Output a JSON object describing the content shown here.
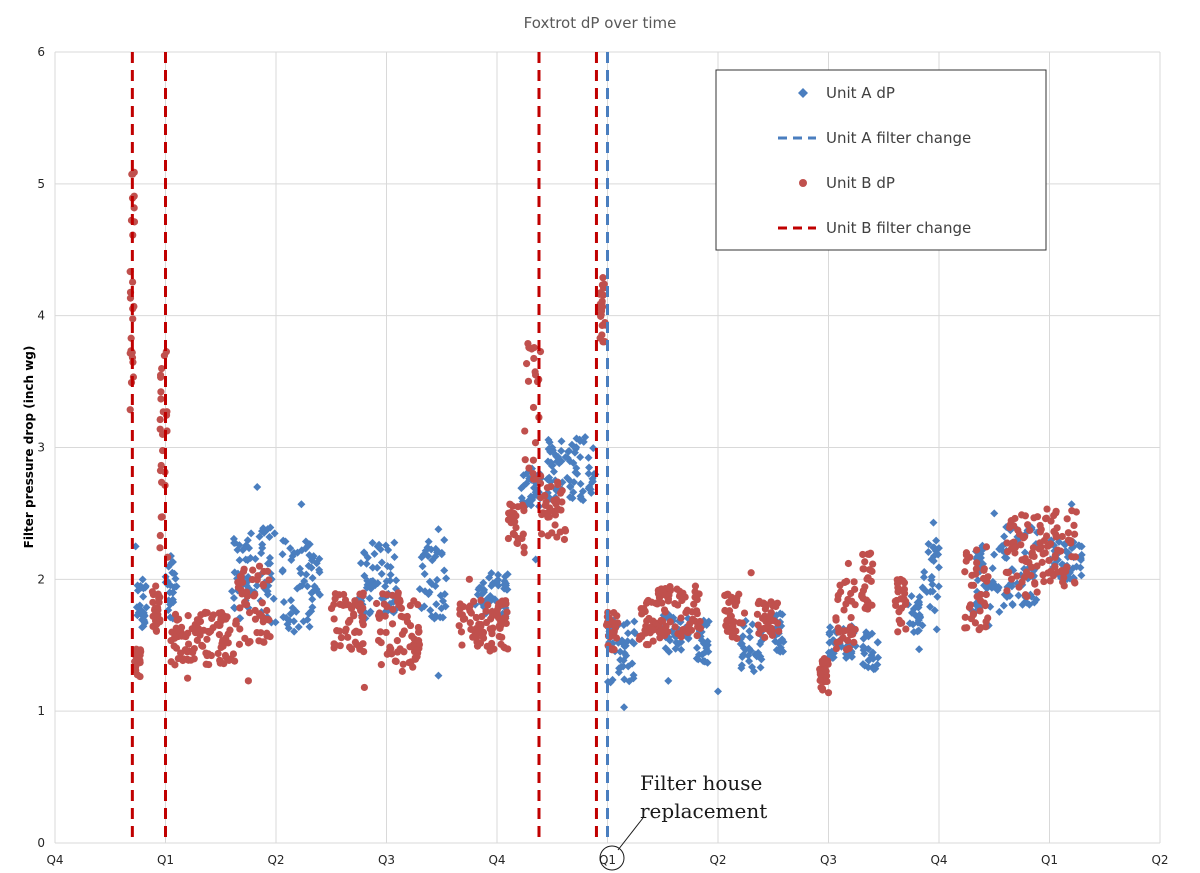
{
  "chart_data": {
    "type": "scatter",
    "title": "Foxtrot dP over time",
    "ylabel": "Filter pressure drop (inch wg)",
    "xlabel": "",
    "ylim": [
      0,
      6
    ],
    "yticks": [
      0,
      1,
      2,
      3,
      4,
      5,
      6
    ],
    "xticks": [
      "Q4",
      "Q1",
      "Q2",
      "Q3",
      "Q4",
      "Q1",
      "Q2",
      "Q3",
      "Q4",
      "Q1",
      "Q2"
    ],
    "grid": true,
    "legend_position": "top-right",
    "colors": {
      "unit_a": "#4a7ebf",
      "unit_b": "#c0504d",
      "unit_b_line": "#c00000",
      "grid": "#d9d9d9"
    },
    "series": [
      {
        "name": "Unit A dP",
        "marker": "diamond",
        "segments": [
          {
            "x": [
              0.73,
              0.83
            ],
            "lo": 1.6,
            "hi": 2.0
          },
          {
            "x": [
              1.0,
              1.1
            ],
            "lo": 1.7,
            "hi": 2.2
          },
          {
            "x": [
              1.6,
              1.82
            ],
            "lo": 1.7,
            "hi": 2.35
          },
          {
            "x": [
              1.82,
              2.0
            ],
            "lo": 1.65,
            "hi": 2.4
          },
          {
            "x": [
              2.05,
              2.4
            ],
            "lo": 1.6,
            "hi": 2.3
          },
          {
            "x": [
              2.75,
              3.1
            ],
            "lo": 1.7,
            "hi": 2.3
          },
          {
            "x": [
              3.3,
              3.55
            ],
            "lo": 1.7,
            "hi": 2.3
          },
          {
            "x": [
              3.8,
              4.1
            ],
            "lo": 1.7,
            "hi": 2.05
          },
          {
            "x": [
              4.22,
              4.4
            ],
            "lo": 2.55,
            "hi": 2.85
          },
          {
            "x": [
              4.45,
              4.9
            ],
            "lo": 2.6,
            "hi": 3.1
          },
          {
            "x": [
              5.0,
              5.25
            ],
            "lo": 1.2,
            "hi": 1.7
          },
          {
            "x": [
              5.5,
              5.75
            ],
            "lo": 1.45,
            "hi": 1.75
          },
          {
            "x": [
              5.8,
              5.92
            ],
            "lo": 1.35,
            "hi": 1.7
          },
          {
            "x": [
              6.2,
              6.4
            ],
            "lo": 1.3,
            "hi": 1.7
          },
          {
            "x": [
              6.5,
              6.6
            ],
            "lo": 1.45,
            "hi": 1.75
          },
          {
            "x": [
              7.0,
              7.25
            ],
            "lo": 1.4,
            "hi": 1.65
          },
          {
            "x": [
              7.3,
              7.45
            ],
            "lo": 1.3,
            "hi": 1.6
          },
          {
            "x": [
              7.7,
              7.85
            ],
            "lo": 1.6,
            "hi": 1.9
          },
          {
            "x": [
              7.85,
              8.0
            ],
            "lo": 1.75,
            "hi": 2.35
          },
          {
            "x": [
              8.3,
              8.55
            ],
            "lo": 1.75,
            "hi": 2.3
          },
          {
            "x": [
              8.55,
              8.9
            ],
            "lo": 1.8,
            "hi": 2.4
          },
          {
            "x": [
              9.0,
              9.3
            ],
            "lo": 2.0,
            "hi": 2.3
          }
        ],
        "points": [
          {
            "x": 0.73,
            "y": 2.25
          },
          {
            "x": 0.73,
            "y": 1.45
          },
          {
            "x": 1.83,
            "y": 2.7
          },
          {
            "x": 2.23,
            "y": 2.57
          },
          {
            "x": 3.47,
            "y": 2.38
          },
          {
            "x": 3.47,
            "y": 1.27
          },
          {
            "x": 4.35,
            "y": 2.15
          },
          {
            "x": 5.15,
            "y": 1.03
          },
          {
            "x": 5.55,
            "y": 1.23
          },
          {
            "x": 6.0,
            "y": 1.15
          },
          {
            "x": 7.95,
            "y": 2.43
          },
          {
            "x": 7.82,
            "y": 1.47
          },
          {
            "x": 7.98,
            "y": 1.62
          },
          {
            "x": 8.5,
            "y": 2.5
          },
          {
            "x": 8.45,
            "y": 1.65
          },
          {
            "x": 9.2,
            "y": 2.57
          }
        ]
      },
      {
        "name": "Unit B dP",
        "marker": "circle",
        "segments": [
          {
            "x": [
              0.68,
              0.72
            ],
            "lo": 3.1,
            "hi": 5.2
          },
          {
            "x": [
              0.72,
              0.78
            ],
            "lo": 1.25,
            "hi": 1.5
          },
          {
            "x": [
              0.88,
              0.95
            ],
            "lo": 1.6,
            "hi": 1.95
          },
          {
            "x": [
              0.95,
              1.02
            ],
            "lo": 2.0,
            "hi": 3.8
          },
          {
            "x": [
              1.05,
              1.65
            ],
            "lo": 1.35,
            "hi": 1.75
          },
          {
            "x": [
              1.65,
              1.95
            ],
            "lo": 1.5,
            "hi": 2.1
          },
          {
            "x": [
              2.5,
              2.8
            ],
            "lo": 1.45,
            "hi": 1.9
          },
          {
            "x": [
              2.9,
              3.3
            ],
            "lo": 1.3,
            "hi": 1.9
          },
          {
            "x": [
              3.65,
              4.1
            ],
            "lo": 1.45,
            "hi": 1.85
          },
          {
            "x": [
              4.1,
              4.25
            ],
            "lo": 2.2,
            "hi": 2.6
          },
          {
            "x": [
              4.25,
              4.4
            ],
            "lo": 2.6,
            "hi": 3.8
          },
          {
            "x": [
              4.4,
              4.62
            ],
            "lo": 2.3,
            "hi": 2.75
          },
          {
            "x": [
              4.93,
              4.98
            ],
            "lo": 3.8,
            "hi": 4.3
          },
          {
            "x": [
              4.98,
              5.1
            ],
            "lo": 1.45,
            "hi": 1.75
          },
          {
            "x": [
              5.25,
              5.45
            ],
            "lo": 1.5,
            "hi": 1.85
          },
          {
            "x": [
              5.45,
              5.85
            ],
            "lo": 1.55,
            "hi": 1.95
          },
          {
            "x": [
              6.05,
              6.25
            ],
            "lo": 1.55,
            "hi": 1.9
          },
          {
            "x": [
              6.35,
              6.55
            ],
            "lo": 1.55,
            "hi": 1.85
          },
          {
            "x": [
              6.92,
              7.0
            ],
            "lo": 1.15,
            "hi": 1.4
          },
          {
            "x": [
              7.05,
              7.25
            ],
            "lo": 1.45,
            "hi": 2.0
          },
          {
            "x": [
              7.3,
              7.4
            ],
            "lo": 1.75,
            "hi": 2.2
          },
          {
            "x": [
              7.6,
              7.7
            ],
            "lo": 1.6,
            "hi": 2.0
          },
          {
            "x": [
              8.22,
              8.45
            ],
            "lo": 1.6,
            "hi": 2.25
          },
          {
            "x": [
              8.6,
              8.95
            ],
            "lo": 1.85,
            "hi": 2.5
          },
          {
            "x": [
              8.95,
              9.25
            ],
            "lo": 1.95,
            "hi": 2.55
          }
        ],
        "points": [
          {
            "x": 1.2,
            "y": 1.25
          },
          {
            "x": 1.75,
            "y": 1.23
          },
          {
            "x": 2.8,
            "y": 1.18
          },
          {
            "x": 3.75,
            "y": 2.0
          },
          {
            "x": 6.3,
            "y": 2.05
          },
          {
            "x": 7.0,
            "y": 1.14
          },
          {
            "x": 7.18,
            "y": 2.12
          }
        ]
      }
    ],
    "filter_changes": [
      {
        "name": "Unit A filter change",
        "x": [
          5.0
        ]
      },
      {
        "name": "Unit B filter change",
        "x": [
          0.7,
          1.0,
          4.38,
          4.9
        ]
      }
    ],
    "legend": [
      "Unit A dP",
      "Unit A filter change",
      "Unit B dP",
      "Unit B filter change"
    ],
    "annotations": [
      {
        "text": "Filter house replacement",
        "lines": [
          "Filter house",
          "replacement"
        ],
        "target_tick_index": 5
      }
    ]
  }
}
